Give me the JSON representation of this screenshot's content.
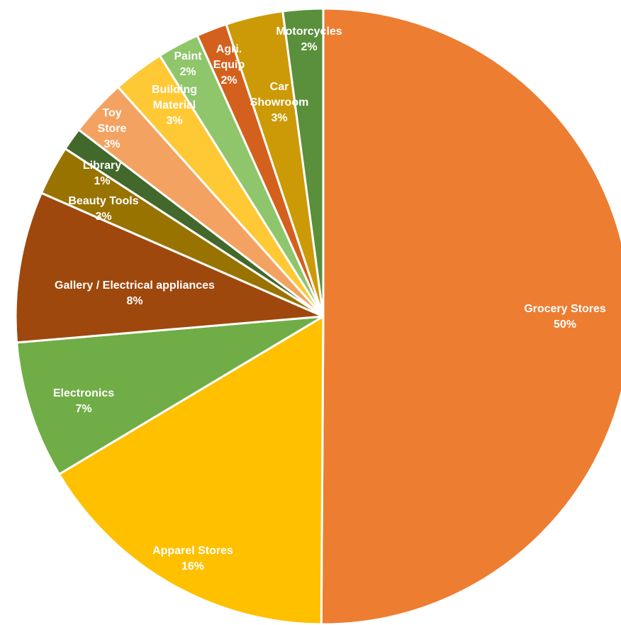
{
  "chart_data": {
    "type": "pie",
    "title": "",
    "legend": "none",
    "start_angle_deg": 0,
    "direction": "clockwise",
    "slices": [
      {
        "label": "Grocery Stores",
        "lines": [
          "Grocery Stores"
        ],
        "value": 50,
        "value_label": "50%",
        "color": "#ED7D31"
      },
      {
        "label": "Apparel Stores",
        "lines": [
          "Apparel Stores"
        ],
        "value": 16.3,
        "value_label": "16%",
        "color": "#FFC000"
      },
      {
        "label": "Electronics",
        "lines": [
          "Electronics"
        ],
        "value": 7.2,
        "value_label": "7%",
        "color": "#70AD47"
      },
      {
        "label": "Gallery / Electrical appliances",
        "lines": [
          "Gallery / Electrical appliances"
        ],
        "value": 7.9,
        "value_label": "8%",
        "color": "#9E480E"
      },
      {
        "label": "Beauty Tools",
        "lines": [
          "Beauty Tools"
        ],
        "value": 2.6,
        "value_label": "3%",
        "color": "#997300"
      },
      {
        "label": "Library",
        "lines": [
          "Library"
        ],
        "value": 1.2,
        "value_label": "1%",
        "color": "#43682B"
      },
      {
        "label": "Toy Store",
        "lines": [
          "Toy",
          "Store"
        ],
        "value": 3.0,
        "value_label": "3%",
        "color": "#F4A261"
      },
      {
        "label": "Building Material",
        "lines": [
          "Building",
          "Material"
        ],
        "value": 2.7,
        "value_label": "3%",
        "color": "#FFC935"
      },
      {
        "label": "Paint",
        "lines": [
          "Paint"
        ],
        "value": 2.2,
        "value_label": "2%",
        "color": "#8FC66B"
      },
      {
        "label": "Agri. Equip",
        "lines": [
          "Agri.",
          "Equip"
        ],
        "value": 1.6,
        "value_label": "2%",
        "color": "#D3601D"
      },
      {
        "label": "Car Showroom",
        "lines": [
          "Car",
          "Showroom"
        ],
        "value": 3.0,
        "value_label": "3%",
        "color": "#CC9A06"
      },
      {
        "label": "Motorcycles",
        "lines": [
          "Motorcycles"
        ],
        "value": 2.1,
        "value_label": "2%",
        "color": "#5A8F3C"
      }
    ]
  }
}
